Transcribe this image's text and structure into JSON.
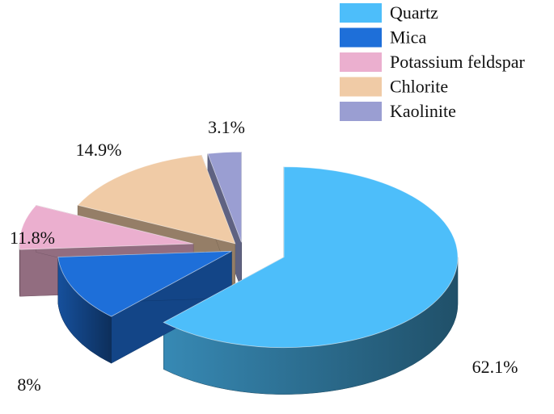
{
  "chart_data": {
    "type": "pie",
    "style": "3d-exploded",
    "categories": [
      "Quartz",
      "Mica",
      "Potassium feldspar",
      "Chlorite",
      "Kaolinite"
    ],
    "values": [
      62.1,
      11.8,
      8,
      14.9,
      3.1
    ],
    "value_labels": [
      "62.1%",
      "11.8%",
      "8%",
      "14.9%",
      "3.1%"
    ],
    "colors": [
      "#4DBEFA",
      "#1E6FD9",
      "#EBAFCF",
      "#F0CBA6",
      "#9A9ED2"
    ],
    "legend": {
      "placement": "top-right",
      "entries": [
        "Quartz",
        "Mica",
        "Potassium feldspar",
        "Chlorite",
        "Kaolinite"
      ]
    }
  }
}
